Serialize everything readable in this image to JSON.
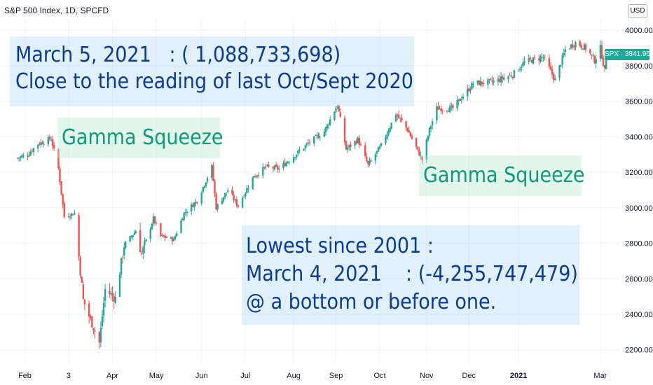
{
  "header": {
    "title": "S&P 500 Index, 1D, SPCFD",
    "currency": "USD"
  },
  "price_tag": {
    "label": "SPX · 3841.95"
  },
  "annotations": {
    "march5_line1": "March 5, 2021   : ( 1,088,733,698)",
    "march5_line2": "Close to the reading of last Oct/Sept 2020",
    "gamma_left": "Gamma Squeeze",
    "gamma_right": "Gamma Squeeze",
    "lowest_line1": "Lowest since 2001 :",
    "lowest_line2": "March 4, 2021    : (-4,255,747,479)",
    "lowest_line3": "@ a bottom or before one."
  },
  "colors": {
    "up": "#26a69a",
    "down": "#ef5350",
    "grid": "#f0f3fa",
    "axis_text": "#131722"
  },
  "chart_data": {
    "type": "candlestick",
    "title": "S&P 500 Index, 1D, SPCFD",
    "yaxis_side": "right",
    "ylim": [
      2120,
      4060
    ],
    "yticks": [
      "2200.00",
      "2400.00",
      "2600.00",
      "2800.00",
      "3000.00",
      "3200.00",
      "3400.00",
      "3600.00",
      "3800.00",
      "4000.00"
    ],
    "xticks": [
      "Feb",
      "3",
      "Apr",
      "May",
      "Jun",
      "Jul",
      "Aug",
      "Sep",
      "Oct",
      "Nov",
      "Dec",
      "2021",
      "Mar"
    ],
    "last_price": 3841.95,
    "close_path": [
      [
        "2020-01-27",
        3280
      ],
      [
        "2020-02-03",
        3300
      ],
      [
        "2020-02-10",
        3360
      ],
      [
        "2020-02-19",
        3390
      ],
      [
        "2020-02-24",
        3220
      ],
      [
        "2020-02-28",
        2950
      ],
      [
        "2020-03-06",
        2970
      ],
      [
        "2020-03-12",
        2480
      ],
      [
        "2020-03-16",
        2390
      ],
      [
        "2020-03-23",
        2240
      ],
      [
        "2020-03-27",
        2540
      ],
      [
        "2020-04-03",
        2490
      ],
      [
        "2020-04-09",
        2790
      ],
      [
        "2020-04-17",
        2870
      ],
      [
        "2020-04-21",
        2740
      ],
      [
        "2020-04-29",
        2940
      ],
      [
        "2020-05-04",
        2840
      ],
      [
        "2020-05-13",
        2820
      ],
      [
        "2020-05-20",
        2970
      ],
      [
        "2020-05-29",
        3040
      ],
      [
        "2020-06-08",
        3230
      ],
      [
        "2020-06-11",
        3000
      ],
      [
        "2020-06-19",
        3100
      ],
      [
        "2020-06-26",
        3010
      ],
      [
        "2020-07-06",
        3170
      ],
      [
        "2020-07-15",
        3230
      ],
      [
        "2020-07-24",
        3220
      ],
      [
        "2020-08-03",
        3290
      ],
      [
        "2020-08-14",
        3370
      ],
      [
        "2020-08-24",
        3430
      ],
      [
        "2020-09-02",
        3580
      ],
      [
        "2020-09-08",
        3330
      ],
      [
        "2020-09-16",
        3385
      ],
      [
        "2020-09-23",
        3240
      ],
      [
        "2020-10-02",
        3350
      ],
      [
        "2020-10-12",
        3530
      ],
      [
        "2020-10-20",
        3440
      ],
      [
        "2020-10-30",
        3270
      ],
      [
        "2020-11-04",
        3440
      ],
      [
        "2020-11-09",
        3560
      ],
      [
        "2020-11-20",
        3560
      ],
      [
        "2020-12-04",
        3700
      ],
      [
        "2020-12-18",
        3710
      ],
      [
        "2020-12-31",
        3750
      ],
      [
        "2021-01-08",
        3820
      ],
      [
        "2021-01-21",
        3850
      ],
      [
        "2021-01-29",
        3720
      ],
      [
        "2021-02-05",
        3890
      ],
      [
        "2021-02-12",
        3930
      ],
      [
        "2021-02-19",
        3900
      ],
      [
        "2021-02-25",
        3830
      ],
      [
        "2021-03-01",
        3900
      ],
      [
        "2021-03-04",
        3770
      ],
      [
        "2021-03-05",
        3842
      ]
    ]
  }
}
